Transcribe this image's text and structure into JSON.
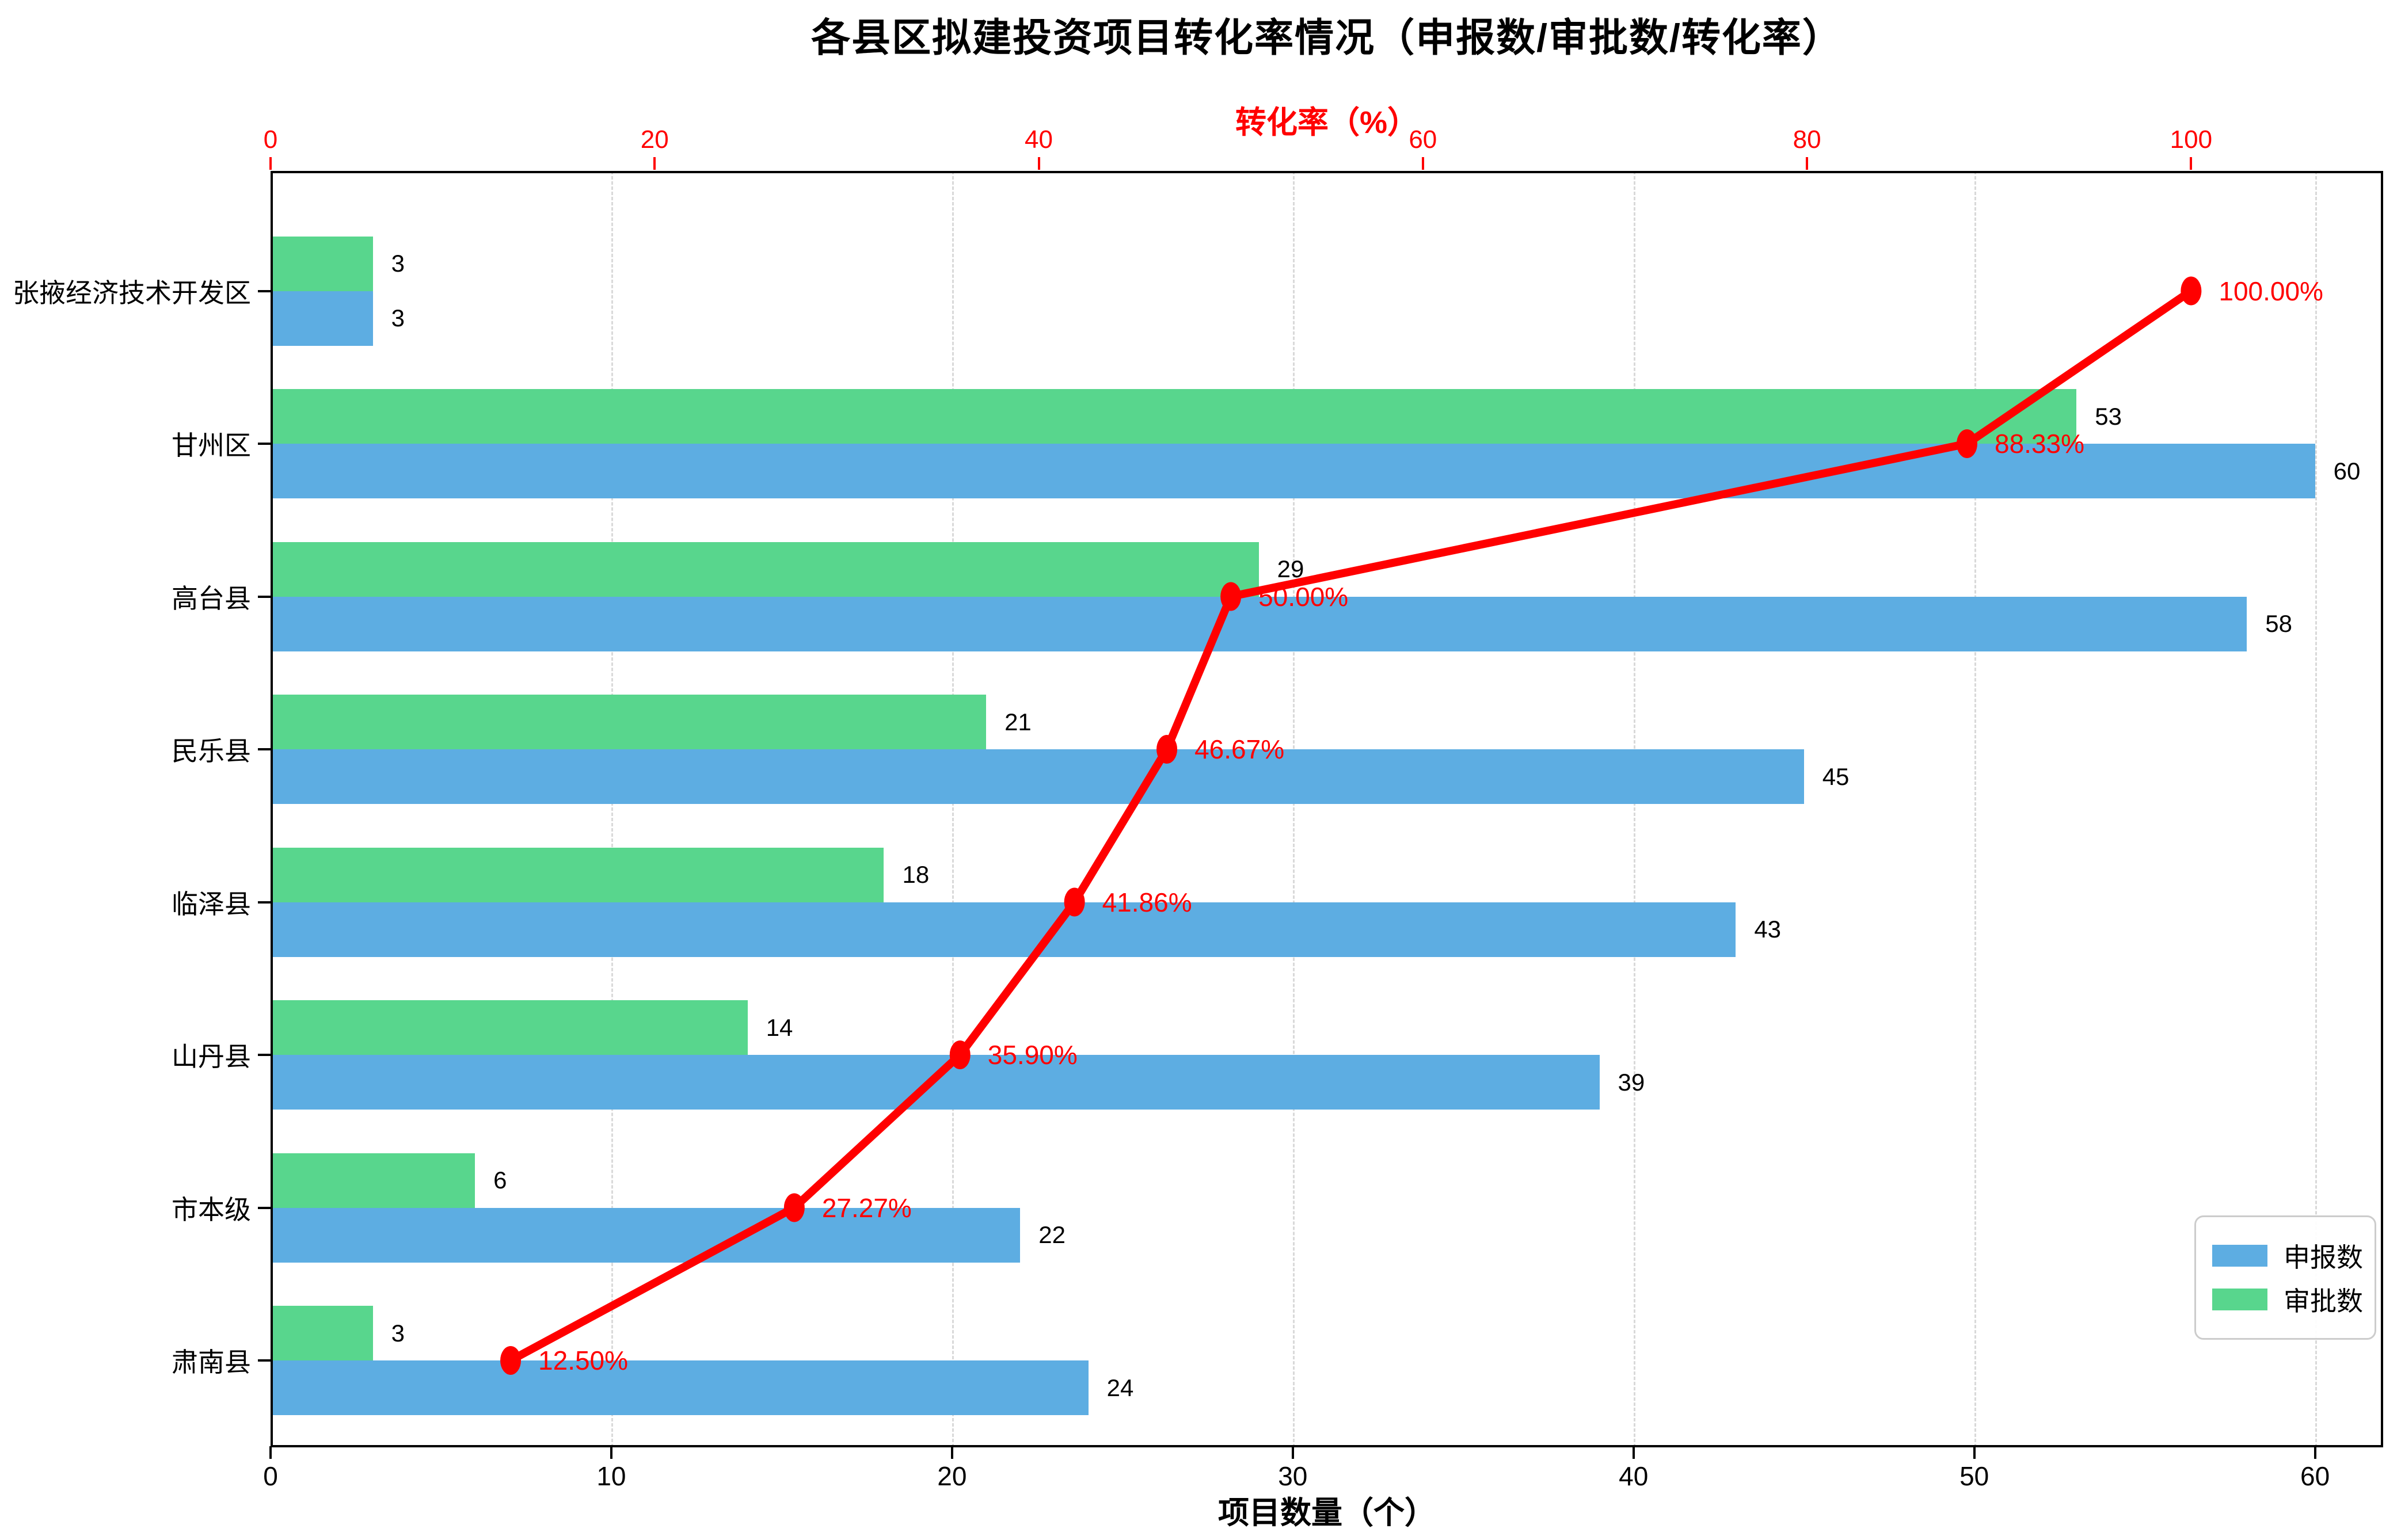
{
  "title": "各县区拟建投资项目转化率情况（申报数/审批数/转化率）",
  "colors": {
    "bar_blue": "#5DADE2",
    "bar_green": "#58D68D",
    "line_red": "#FF0000",
    "grid": "#D9D9D9",
    "axis": "#000000",
    "legend_border": "#CCCCCC"
  },
  "legend": {
    "items": [
      {
        "label": "申报数",
        "color": "#5DADE2"
      },
      {
        "label": "审批数",
        "color": "#58D68D"
      }
    ]
  },
  "chart_data": {
    "type": "bar",
    "subtype": "horizontal grouped bars with conversion-rate line on secondary top axis",
    "title": "各县区拟建投资项目转化率情况（申报数/审批数/转化率）",
    "categories": [
      "张掖经济技术开发区",
      "甘州区",
      "高台县",
      "民乐县",
      "临泽县",
      "山丹县",
      "市本级",
      "肃南县"
    ],
    "series": [
      {
        "name": "申报数",
        "type": "bar",
        "color": "#5DADE2",
        "axis": "bottom_count",
        "values": [
          3,
          60,
          58,
          45,
          43,
          39,
          22,
          24
        ]
      },
      {
        "name": "审批数",
        "type": "bar",
        "color": "#58D68D",
        "axis": "bottom_count",
        "values": [
          3,
          53,
          29,
          21,
          18,
          14,
          6,
          3
        ]
      },
      {
        "name": "转化率",
        "type": "line",
        "color": "#FF0000",
        "axis": "top_percent",
        "values": [
          100.0,
          88.33,
          50.0,
          46.67,
          41.86,
          35.9,
          27.27,
          12.5
        ],
        "point_labels": [
          "100.00%",
          "88.33%",
          "50.00%",
          "46.67%",
          "41.86%",
          "35.90%",
          "27.27%",
          "12.50%"
        ]
      }
    ],
    "xlabel": "项目数量（个）",
    "xlabel_top": "转化率（%）",
    "x_ticks": [
      0,
      10,
      20,
      30,
      40,
      50,
      60
    ],
    "x_ticks_top": [
      0,
      20,
      40,
      60,
      80,
      100
    ],
    "xlim": [
      0,
      62
    ],
    "xlim_top": [
      0,
      110
    ],
    "grid": "vertical dashed",
    "legend_position": "lower right"
  }
}
